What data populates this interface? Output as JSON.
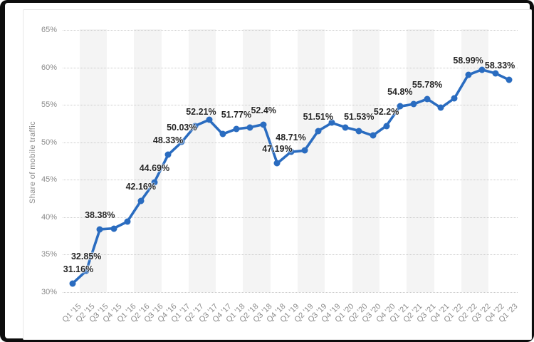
{
  "chart_data": {
    "type": "line",
    "ylabel": "Share of mobile traffic",
    "ylim": [
      30,
      65
    ],
    "yticks": [
      "30%",
      "35%",
      "40%",
      "45%",
      "50%",
      "55%",
      "60%",
      "65%"
    ],
    "grid": "horizontal-dotted",
    "legend": false,
    "categories": [
      "Q1 '15",
      "Q2 '15",
      "Q3 '15",
      "Q4 '15",
      "Q1 '16",
      "Q2 '16",
      "Q3 '16",
      "Q4 '16",
      "Q1 '17",
      "Q2 '17",
      "Q3 '17",
      "Q4 '17",
      "Q1 '18",
      "Q2 '18",
      "Q3 '18",
      "Q4 '18",
      "Q1 '19",
      "Q2 '19",
      "Q3 '19",
      "Q4 '19",
      "Q1 '20",
      "Q2 '20",
      "Q3 '20",
      "Q4 '20",
      "Q1 '21",
      "Q2 '21",
      "Q3 '21",
      "Q4 '21",
      "Q1 '22",
      "Q2 '22",
      "Q3 '22",
      "Q4 '22",
      "Q1 '23"
    ],
    "series": [
      {
        "name": "Share of mobile traffic",
        "values": [
          31.16,
          32.85,
          38.38,
          38.5,
          39.4,
          42.16,
          44.69,
          48.33,
          50.03,
          52.21,
          53.0,
          51.1,
          51.77,
          52.0,
          52.4,
          47.19,
          48.71,
          48.9,
          51.51,
          52.6,
          52.0,
          51.53,
          50.9,
          52.2,
          54.8,
          55.1,
          55.78,
          54.6,
          55.9,
          58.99,
          59.7,
          59.2,
          58.33
        ],
        "point_labels": [
          "31.16%",
          "32.85%",
          "38.38%",
          null,
          null,
          "42.16%",
          "44.69%",
          "48.33%",
          "50.03%",
          "52.21%",
          null,
          null,
          "51.77%",
          null,
          "52.4%",
          "47.19%",
          "48.71%",
          null,
          "51.51%",
          null,
          null,
          "51.53%",
          null,
          "52.2%",
          "54.8%",
          null,
          "55.78%",
          null,
          null,
          "58.99%",
          null,
          null,
          "58.33%"
        ]
      }
    ],
    "colors": {
      "line": "#2a6cc0",
      "data_label": "#262626",
      "axis_text": "#8c8c8c",
      "grid": "#c9c9c9",
      "band": "#f4f4f4",
      "card_border": "#e7e7e7",
      "frame": "#0d0d0d"
    }
  }
}
